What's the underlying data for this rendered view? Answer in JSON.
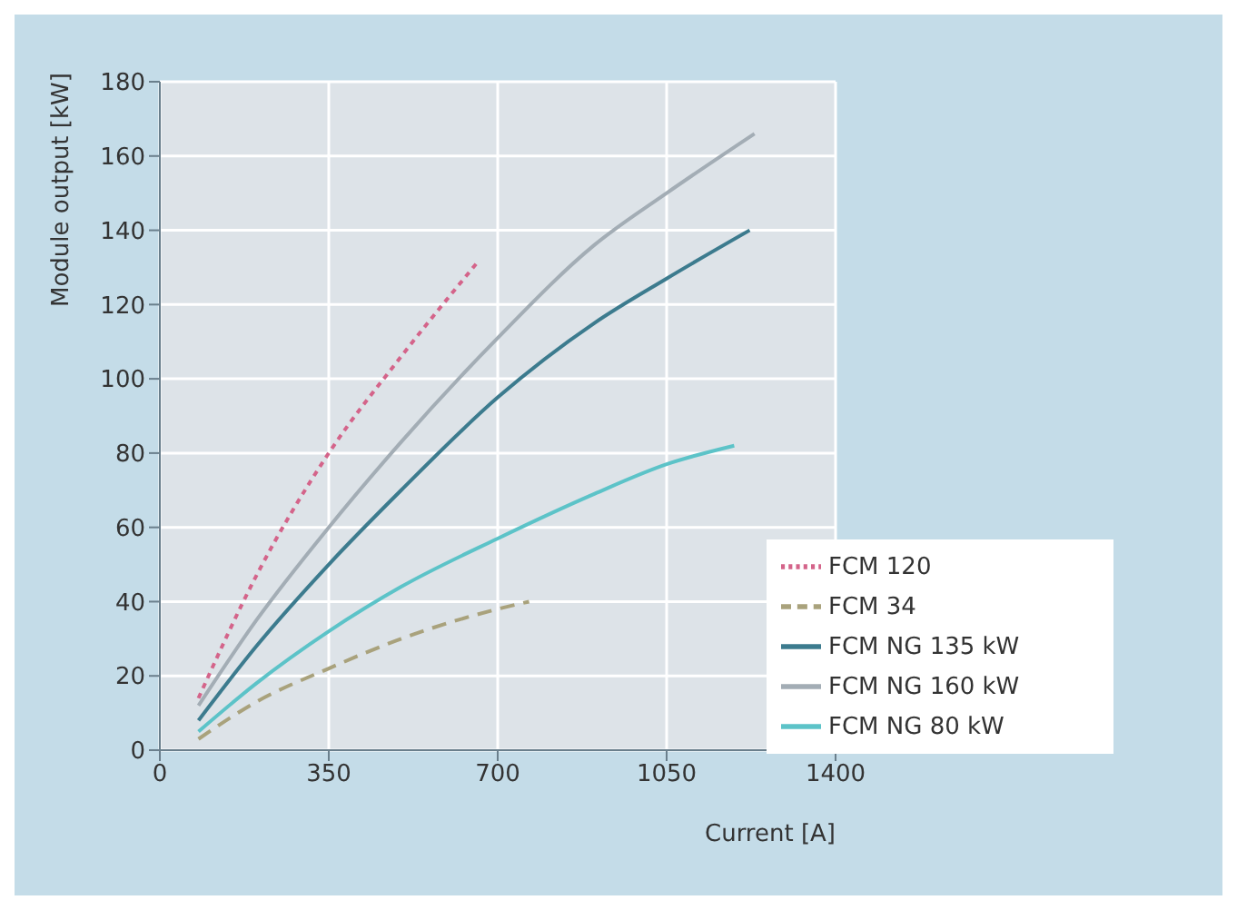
{
  "chart_data": {
    "type": "line",
    "xlabel": "Current [A]",
    "ylabel": "Module output [kW]",
    "xlim": [
      0,
      1400
    ],
    "xticks": [
      0,
      350,
      700,
      1050,
      1400
    ],
    "ylim": [
      0,
      180
    ],
    "yticks": [
      0,
      20,
      40,
      60,
      80,
      100,
      120,
      140,
      160,
      180
    ],
    "grid": true,
    "legend": "bottom right",
    "marker": "none",
    "series": [
      {
        "name": "FCM NG 160 kW",
        "color": "#a3adb5",
        "line_style": "solid",
        "x": [
          80,
          200,
          350,
          500,
          700,
          900,
          1050,
          1232
        ],
        "values": [
          12,
          35,
          60,
          83,
          111,
          136,
          150,
          166
        ]
      },
      {
        "name": "FCM NG 135 kW",
        "color": "#3c7b8e",
        "line_style": "solid",
        "x": [
          80,
          200,
          350,
          500,
          700,
          900,
          1050,
          1222
        ],
        "values": [
          8,
          28,
          50,
          70,
          95,
          115,
          127,
          140
        ]
      },
      {
        "name": "FCM NG 80 kW",
        "color": "#5cc3c8",
        "line_style": "solid",
        "x": [
          80,
          200,
          350,
          500,
          700,
          900,
          1050,
          1190
        ],
        "values": [
          5,
          18,
          32,
          44,
          57,
          69,
          77,
          82
        ]
      },
      {
        "name": "FCM 34",
        "color": "#a9a27c",
        "line_style": "dashed",
        "x": [
          80,
          200,
          350,
          500,
          700,
          765
        ],
        "values": [
          3,
          13,
          22,
          30,
          38,
          40
        ]
      },
      {
        "name": "FCM 120",
        "color": "#d4648a",
        "line_style": "dotted",
        "x": [
          80,
          200,
          350,
          500,
          662
        ],
        "values": [
          14,
          47,
          80,
          106,
          132
        ]
      }
    ]
  }
}
